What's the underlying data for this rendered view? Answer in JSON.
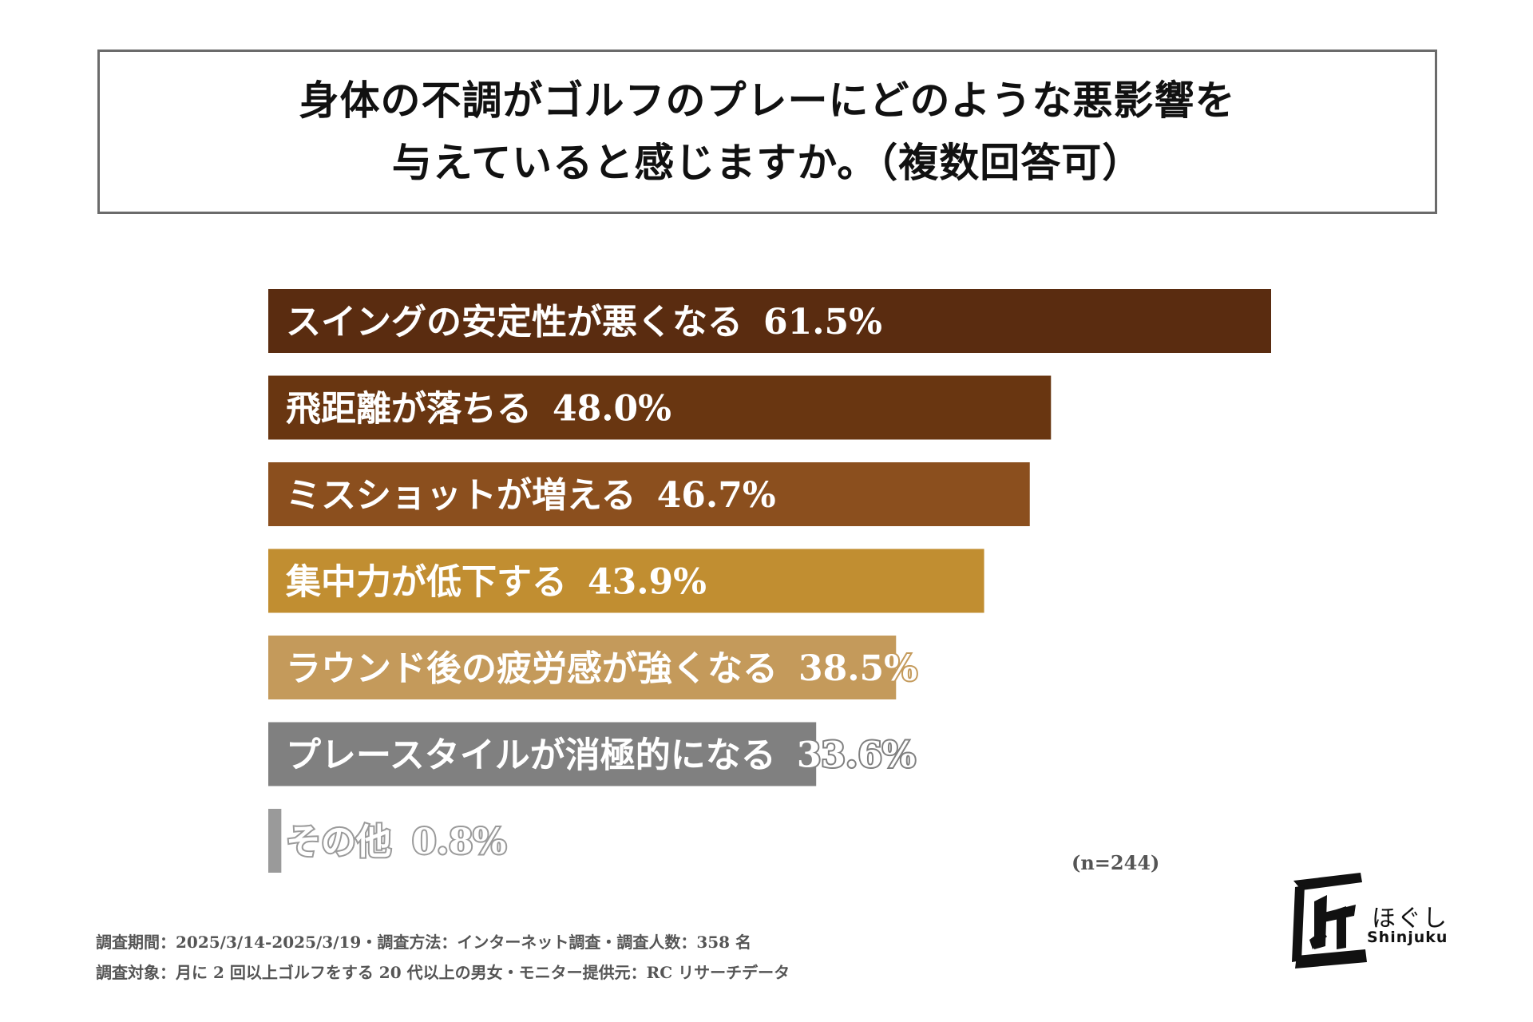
{
  "title": {
    "line1": "身体の不調がゴルフのプレーにどのような悪影響を",
    "line2": "与えていると感じますか。（複数回答可）"
  },
  "chart_data": {
    "type": "bar",
    "orientation": "horizontal",
    "title": "身体の不調がゴルフのプレーにどのような悪影響を与えていると感じますか。（複数回答可）",
    "categories": [
      "スイングの安定性が悪くなる",
      "飛距離が落ちる",
      "ミスショットが増える",
      "集中力が低下する",
      "ラウンド後の疲労感が強くなる",
      "プレースタイルが消極的になる",
      "その他"
    ],
    "values": [
      61.5,
      48.0,
      46.7,
      43.9,
      38.5,
      33.6,
      0.8
    ],
    "value_labels": [
      "61.5%",
      "48.0%",
      "46.7%",
      "43.9%",
      "38.5%",
      "33.6%",
      "0.8%"
    ],
    "colors": [
      "#5a2c10",
      "#693611",
      "#8b4f1e",
      "#c18e31",
      "#c49a5b",
      "#808080",
      "#9a9a9a"
    ],
    "xlim": [
      0,
      61.5
    ],
    "unit": "%"
  },
  "sample_note": "(n=244)",
  "footer": {
    "line1": "調査期間：2025/3/14-2025/3/19・調査方法：インターネット調査・調査人数：358 名",
    "line2": "調査対象：月に 2 回以上ゴルフをする 20 代以上の男女・モニター提供元：RC リサーチデータ"
  },
  "logo": {
    "mark": "匠",
    "kana": "ほぐし",
    "latin": "Shinjuku"
  }
}
